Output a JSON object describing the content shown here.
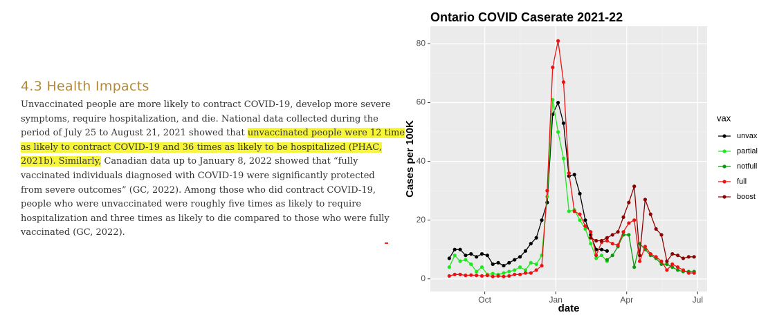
{
  "document": {
    "heading": "4.3 Health Impacts",
    "lines": [
      [
        {
          "text": "Unvaccinated people are more likely to contract COVID-19, develop more severe",
          "highlight": false
        }
      ],
      [
        {
          "text": "symptoms, require hospitalization, and die. National data collected during the",
          "highlight": false
        }
      ],
      [
        {
          "text": "period of July 25 to August 21, 2021 showed that ",
          "highlight": false
        },
        {
          "text": "unvaccinated people were 12 time",
          "highlight": true
        }
      ],
      [
        {
          "text": "as likely to contract COVID-19 and 36 times as likely to be hospitalized (PHAC,",
          "highlight": true
        }
      ],
      [
        {
          "text": "2021b). Similarly,",
          "highlight": true
        },
        {
          "text": " Canadian data up to January 8, 2022 showed that “fully",
          "highlight": false
        }
      ],
      [
        {
          "text": "vaccinated individuals diagnosed with COVID-19 were significantly protected",
          "highlight": false
        }
      ],
      [
        {
          "text": "from severe outcomes” (GC, 2022). Among those who did contract COVID-19,",
          "highlight": false
        }
      ],
      [
        {
          "text": "people who were unvaccinated were roughly five times as likely to require",
          "highlight": false
        }
      ],
      [
        {
          "text": "hospitalization and three times as likely to die compared to those who were fully",
          "highlight": false
        }
      ],
      [
        {
          "text": "vaccinated (GC, 2022).",
          "highlight": false
        }
      ]
    ]
  },
  "chart_data": {
    "type": "line",
    "title": "Ontario COVID Caserate 2021-22",
    "x_label": "date",
    "y_label": "Cases per 100K",
    "legend_title": "vax",
    "legend": "right",
    "grid": true,
    "x": [
      8.5,
      8.73,
      8.96,
      9.19,
      9.42,
      9.65,
      9.88,
      10.11,
      10.34,
      10.57,
      10.8,
      11.03,
      11.26,
      11.49,
      11.72,
      11.95,
      12.18,
      12.41,
      12.64,
      12.87,
      13.1,
      13.33,
      13.56,
      13.79,
      14.02,
      14.25,
      14.48,
      14.71,
      14.94,
      15.17,
      15.4,
      15.63,
      15.86,
      16.09,
      16.32,
      16.55,
      16.78,
      17.01,
      17.24,
      17.47,
      17.7,
      17.93,
      18.16,
      18.39,
      18.62,
      18.85
    ],
    "xlim": [
      7.7,
      19.4
    ],
    "xticks": [
      {
        "value": 10,
        "label": "Oct"
      },
      {
        "value": 13,
        "label": "Jan"
      },
      {
        "value": 16,
        "label": "Apr"
      },
      {
        "value": 19,
        "label": "Jul"
      }
    ],
    "ylim": [
      -4.3,
      86
    ],
    "yticks": [
      0,
      20,
      40,
      60,
      80
    ],
    "series": [
      {
        "name": "unvax",
        "color": "#000000",
        "values": [
          7,
          10,
          10,
          8,
          8.5,
          7.5,
          8.5,
          8,
          5,
          5.5,
          4.5,
          5.5,
          6.5,
          7.5,
          9.5,
          12,
          14,
          20,
          26,
          56,
          60,
          53,
          35,
          35.5,
          29,
          20,
          15,
          10,
          10,
          9.5,
          null,
          null,
          null,
          null,
          null,
          null,
          null,
          null,
          null,
          null,
          null,
          null,
          null,
          null,
          null,
          null
        ]
      },
      {
        "name": "partial",
        "color": "#1ee81e",
        "values": [
          4,
          8,
          6,
          6.5,
          5,
          2.5,
          4,
          1.5,
          1.8,
          1.5,
          2,
          2.5,
          3,
          4,
          3,
          5.5,
          5,
          8,
          28,
          61,
          50,
          41,
          23,
          23.5,
          20,
          17,
          12,
          7,
          8,
          6,
          null,
          null,
          null,
          null,
          null,
          null,
          null,
          null,
          null,
          null,
          null,
          null,
          null,
          null,
          null,
          null
        ]
      },
      {
        "name": "notfull",
        "color": "#0a9a0a",
        "values": [
          null,
          null,
          null,
          null,
          null,
          null,
          null,
          null,
          null,
          null,
          null,
          null,
          null,
          null,
          null,
          null,
          null,
          null,
          null,
          null,
          null,
          null,
          null,
          null,
          null,
          null,
          null,
          null,
          null,
          6.5,
          8,
          11,
          15,
          15,
          4,
          12,
          10,
          8,
          7,
          5,
          5,
          4,
          3,
          2.5,
          2.5,
          2.5
        ]
      },
      {
        "name": "full",
        "color": "#ee1111",
        "values": [
          1,
          1.5,
          1.5,
          1.2,
          1.3,
          1.2,
          1,
          1.2,
          0.8,
          1,
          0.8,
          1,
          1.5,
          1.5,
          2,
          2,
          3,
          4.5,
          30,
          72,
          81,
          67,
          36,
          23,
          22,
          18,
          16,
          8,
          12.5,
          13,
          12,
          11.5,
          16,
          19,
          20,
          6,
          11,
          8.5,
          7.5,
          6,
          3,
          5,
          4,
          3,
          2,
          2
        ]
      },
      {
        "name": "boost",
        "color": "#8b0000",
        "values": [
          null,
          null,
          null,
          null,
          null,
          null,
          null,
          null,
          null,
          null,
          null,
          null,
          null,
          null,
          null,
          null,
          null,
          null,
          null,
          null,
          null,
          null,
          null,
          null,
          null,
          null,
          14,
          13,
          13,
          14,
          15,
          16,
          21,
          26,
          31.5,
          8,
          27,
          22,
          17,
          15,
          6,
          8.5,
          8,
          7,
          7.5,
          7.5
        ]
      }
    ]
  }
}
